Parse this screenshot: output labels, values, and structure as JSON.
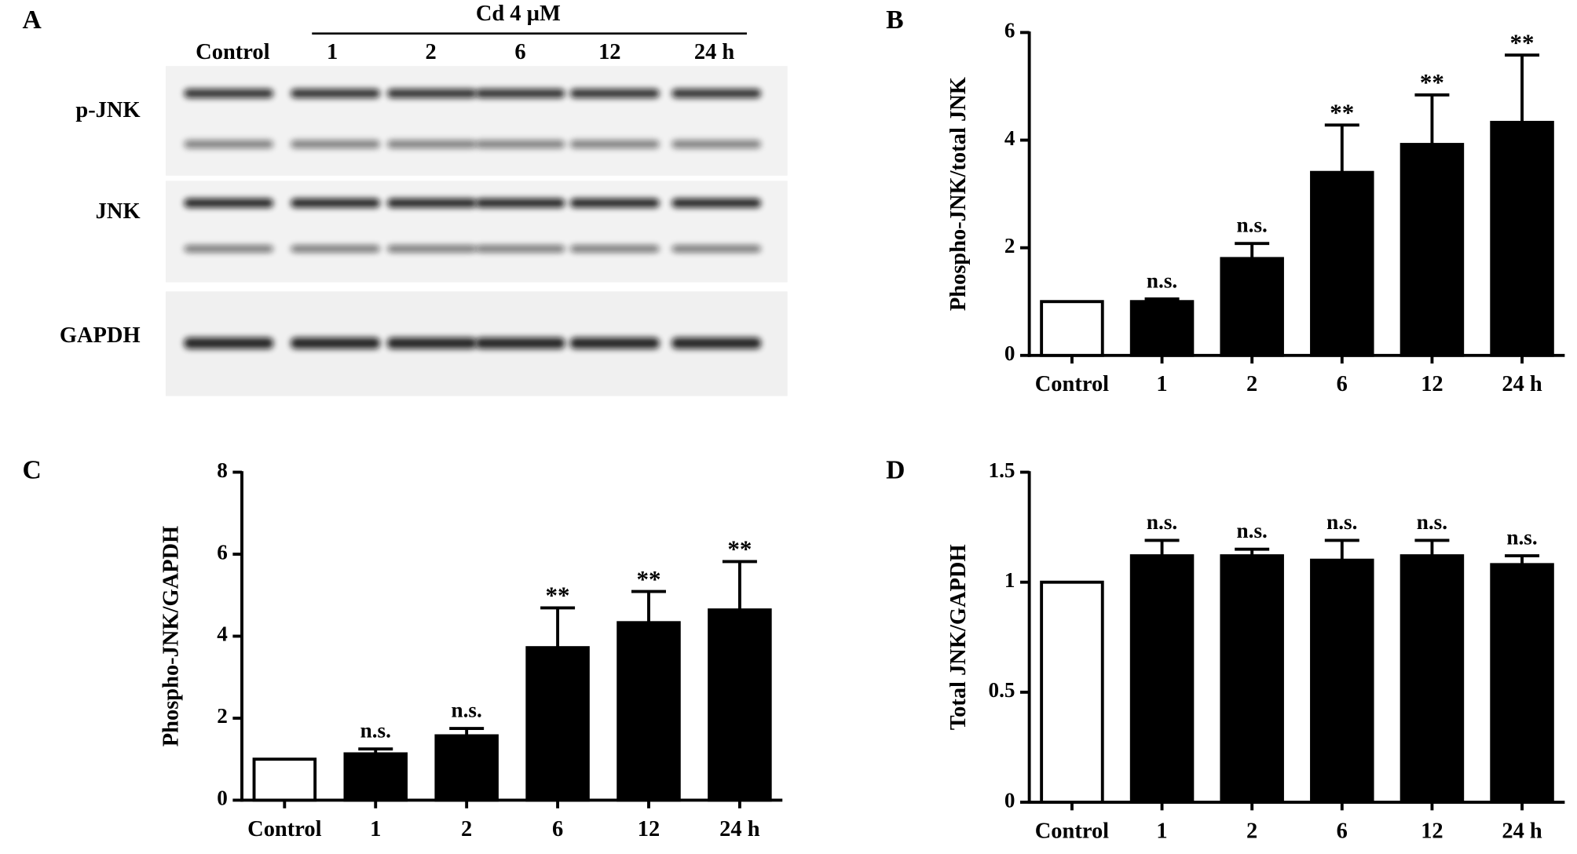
{
  "blot": {
    "panel_label": "A",
    "treatment": "Cd  4 µM",
    "lanes": [
      "Control",
      "1",
      "2",
      "6",
      "12",
      "24 h"
    ],
    "rows": [
      "p-JNK",
      "JNK",
      "GAPDH"
    ]
  },
  "chart_data": [
    {
      "type": "bar",
      "panel_label": "B",
      "y_label": "Phospho-JNK/total JNK",
      "categories": [
        "Control",
        "1",
        "2",
        "6",
        "12",
        "24 h"
      ],
      "values": [
        1,
        1.0,
        1.8,
        3.4,
        3.92,
        4.33
      ],
      "errors": [
        null,
        0.05,
        0.28,
        0.88,
        0.92,
        1.25
      ],
      "annotations": [
        null,
        "n.s.",
        "n.s.",
        "**",
        "**",
        "**"
      ],
      "colors": [
        "#ffffff",
        "#000000",
        "#000000",
        "#000000",
        "#000000",
        "#000000"
      ],
      "ylim": [
        0,
        6
      ],
      "yticks": [
        0,
        2,
        4,
        6
      ]
    },
    {
      "type": "bar",
      "panel_label": "C",
      "y_label": "Phospho-JNK/GAPDH",
      "categories": [
        "Control",
        "1",
        "2",
        "6",
        "12",
        "24 h"
      ],
      "values": [
        1,
        1.13,
        1.57,
        3.72,
        4.33,
        4.64
      ],
      "errors": [
        null,
        0.12,
        0.18,
        0.97,
        0.76,
        1.18
      ],
      "annotations": [
        null,
        "n.s.",
        "n.s.",
        "**",
        "**",
        "**"
      ],
      "colors": [
        "#ffffff",
        "#000000",
        "#000000",
        "#000000",
        "#000000",
        "#000000"
      ],
      "ylim": [
        0,
        8
      ],
      "yticks": [
        0,
        2,
        4,
        6,
        8
      ]
    },
    {
      "type": "bar",
      "panel_label": "D",
      "y_label": "Total JNK/GAPDH",
      "categories": [
        "Control",
        "1",
        "2",
        "6",
        "12",
        "24 h"
      ],
      "values": [
        1,
        1.12,
        1.12,
        1.1,
        1.12,
        1.08
      ],
      "errors": [
        null,
        0.07,
        0.03,
        0.09,
        0.07,
        0.04
      ],
      "annotations": [
        null,
        "n.s.",
        "n.s.",
        "n.s.",
        "n.s.",
        "n.s."
      ],
      "colors": [
        "#ffffff",
        "#000000",
        "#000000",
        "#000000",
        "#000000",
        "#000000"
      ],
      "ylim": [
        0,
        1.5
      ],
      "yticks": [
        0,
        0.5,
        1,
        1.5
      ]
    }
  ]
}
